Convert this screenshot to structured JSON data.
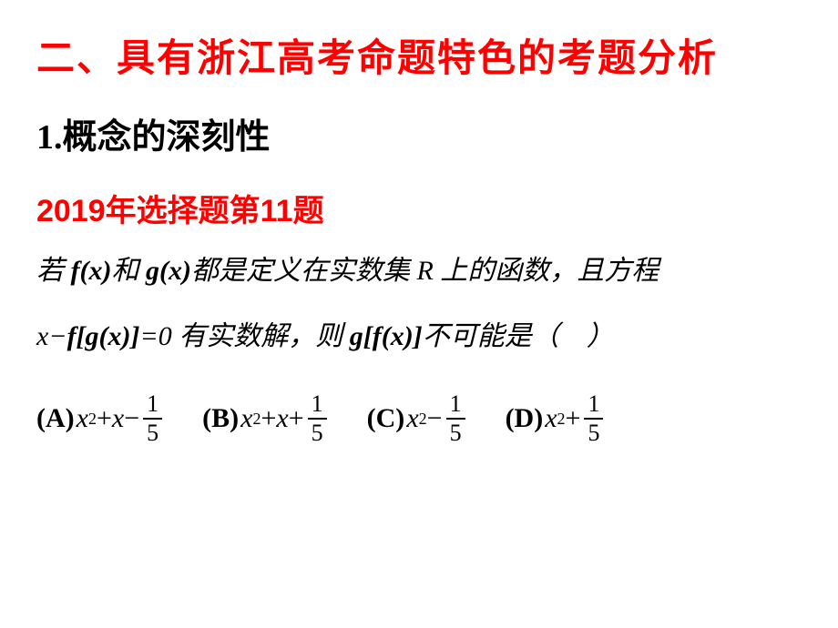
{
  "title": "二、具有浙江高考命题特色的考题分析",
  "subtitle": "1.概念的深刻性",
  "year_label": "2019年选择题第11题",
  "question": {
    "line1_pre": "若 ",
    "fx": "f(x)",
    "line1_mid1": "和 ",
    "gx": "g(x)",
    "line1_post": "都是定义在实数集 R 上的函数，且方程",
    "line2_pre": "x−",
    "fgx": "f[g(x)]",
    "line2_mid": "=0 有实数解，则 ",
    "gfx": "g[f(x)]",
    "line2_post": "不可能是（　）"
  },
  "options": {
    "A": {
      "label": "(A)",
      "term1": "x",
      "exp": "2",
      "op1": "+",
      "term2": "x",
      "op2": "−",
      "frac_num": "1",
      "frac_den": "5"
    },
    "B": {
      "label": "(B)",
      "term1": "x",
      "exp": "2",
      "op1": "+",
      "term2": "x",
      "op2": "+",
      "frac_num": "1",
      "frac_den": "5"
    },
    "C": {
      "label": "(C)",
      "term1": "x",
      "exp": "2",
      "op2": "−",
      "frac_num": "1",
      "frac_den": "5"
    },
    "D": {
      "label": "(D)",
      "term1": "x",
      "exp": "2",
      "op2": "+",
      "frac_num": "1",
      "frac_den": "5"
    }
  },
  "colors": {
    "title": "#ff0000",
    "subtitle": "#000000",
    "year": "#ff0000",
    "body": "#000000",
    "background": "#ffffff"
  }
}
